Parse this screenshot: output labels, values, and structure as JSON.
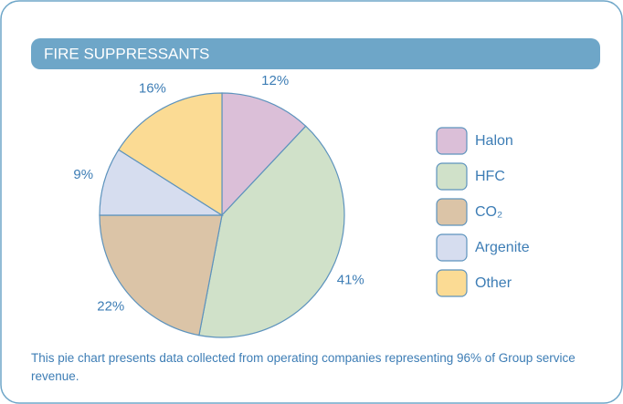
{
  "chart_data": {
    "type": "pie",
    "title": "FIRE SUPPRESSANTS",
    "categories": [
      "Halon",
      "HFC",
      "CO₂",
      "Argenite",
      "Other"
    ],
    "values": [
      12,
      41,
      22,
      9,
      16
    ],
    "value_labels": [
      "12%",
      "41%",
      "22%",
      "9%",
      "16%"
    ],
    "colors": [
      "#dbbfd8",
      "#d0e1c9",
      "#dbc4a7",
      "#d6ddef",
      "#fbdb94"
    ],
    "note": "This pie chart presents data collected from operating companies representing 96% of Group service revenue.",
    "legend": "right"
  }
}
